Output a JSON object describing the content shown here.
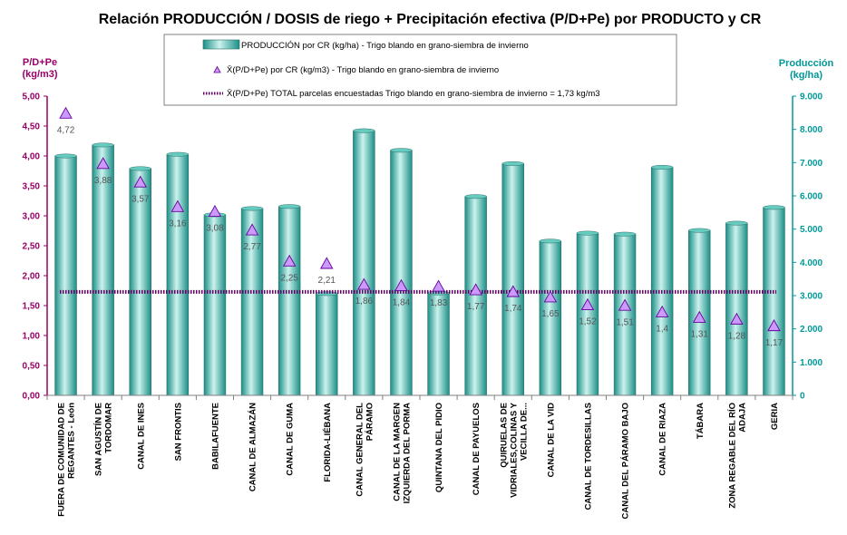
{
  "chart_data": {
    "type": "bar",
    "title": "Relación PRODUCCIÓN / DOSIS de riego + Precipitación efectiva (P/D+Pe) por PRODUCTO y CR",
    "ylabel_left_1": "P/D+Pe",
    "ylabel_left_2": "(kg/m3)",
    "ylabel_right_1": "Producción",
    "ylabel_right_2": "(kg/ha)",
    "ylim_left": [
      0,
      5
    ],
    "ylim_right": [
      0,
      9000
    ],
    "left_ticks": [
      "0,00",
      "0,50",
      "1,00",
      "1,50",
      "2,00",
      "2,50",
      "3,00",
      "3,50",
      "4,00",
      "4,50",
      "5,00"
    ],
    "right_ticks": [
      "0",
      "1.000",
      "2.000",
      "3.000",
      "4.000",
      "5.000",
      "6.000",
      "7.000",
      "8.000",
      "9.000"
    ],
    "categories": [
      [
        "FUERA DE COMUNIDAD DE",
        "REGANTES - León"
      ],
      [
        "SAN AGUSTÍN DE",
        "TORDOMAR"
      ],
      [
        "CANAL DE INES"
      ],
      [
        "SAN FRONTIS"
      ],
      [
        "BABILAFUENTE"
      ],
      [
        "CANAL DE ALMAZÁN"
      ],
      [
        "CANAL DE GUMA"
      ],
      [
        "FLORIDA-LIÉBANA"
      ],
      [
        "CANAL GENERAL DEL",
        "PÁRAMO"
      ],
      [
        "CANAL DE LA MARGEN",
        "IZQUIERDA DEL PORMA"
      ],
      [
        "QUINTANA DEL PIDIO"
      ],
      [
        "CANAL DE PAYUELOS"
      ],
      [
        "QUIRUELAS DE",
        "VIDRIALES,COLINAS Y",
        "VECILLA DE..."
      ],
      [
        "CANAL DE LA VID"
      ],
      [
        "CANAL DE TORDESILLAS"
      ],
      [
        "CANAL DEL PÁRAMO BAJO"
      ],
      [
        "CANAL DE RIAZA"
      ],
      [
        "TÁBARA"
      ],
      [
        "ZONA REGABLE DEL RÍO",
        "ADAJA"
      ],
      [
        "GERIA"
      ]
    ],
    "series": [
      {
        "name": "PRODUCCIÓN por CR (kg/ha) - Trigo blando en grano-siembra de invierno",
        "axis": "right",
        "kind": "bar",
        "values": [
          7200,
          7530,
          6820,
          7250,
          5430,
          5620,
          5680,
          3060,
          7960,
          7370,
          3080,
          5980,
          6970,
          4640,
          4880,
          4850,
          6860,
          4960,
          5180,
          5650
        ]
      },
      {
        "name": "X̄(P/D+Pe) por CR (kg/m3) - Trigo blando en grano-siembra de invierno",
        "axis": "left",
        "kind": "marker",
        "values": [
          4.72,
          3.88,
          3.57,
          3.16,
          3.08,
          2.77,
          2.25,
          2.21,
          1.86,
          1.84,
          1.83,
          1.77,
          1.74,
          1.65,
          1.52,
          1.51,
          1.4,
          1.31,
          1.28,
          1.17
        ],
        "labels": [
          "4,72",
          "3,88",
          "3,57",
          "3,16",
          "3,08",
          "2,77",
          "2,25",
          "2,21",
          "1,86",
          "1,84",
          "1,83",
          "1,77",
          "1,74",
          "1,65",
          "1,52",
          "1,51",
          "1,4",
          "1,31",
          "1,28",
          "1,17"
        ]
      },
      {
        "name": "X̄(P/D+Pe) TOTAL parcelas encuestadas Trigo blando en grano-siembra de invierno = 1,73 kg/m3",
        "axis": "left",
        "kind": "line",
        "value": 1.73
      }
    ],
    "colors": {
      "bar_light": "#ccf2ee",
      "bar_mid": "#66ccc0",
      "bar_dark": "#1b8f86",
      "bar_edge": "#2f6f6a",
      "marker_fill": "#cc99ff",
      "marker_edge": "#660099",
      "line": "#660066",
      "left_axis": "#990066",
      "right_axis": "#009999"
    }
  }
}
